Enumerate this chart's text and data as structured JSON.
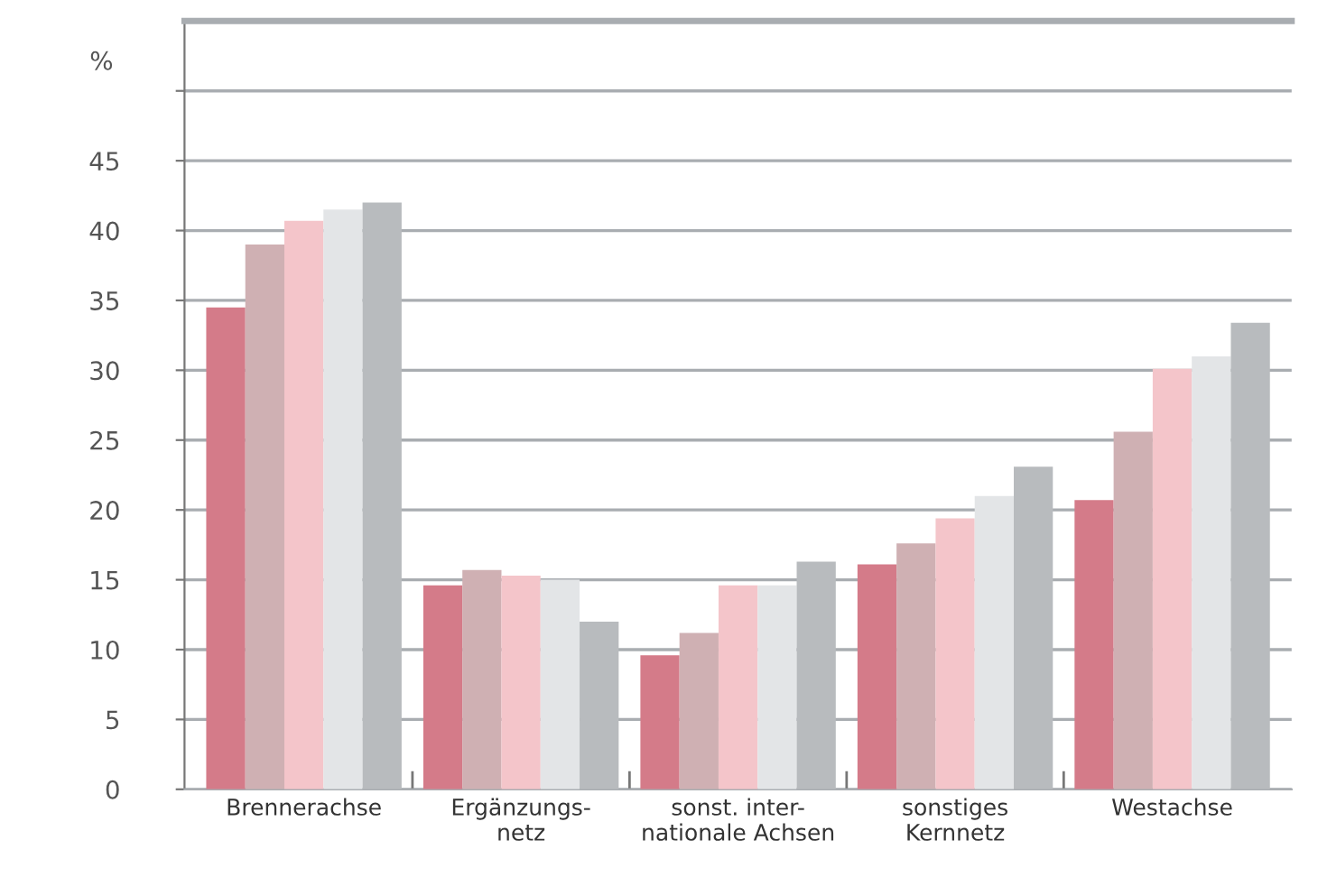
{
  "chart_data": {
    "type": "bar",
    "ylabel": "%",
    "categories": [
      "Brennerachse",
      "Ergänzungs-\nnetz",
      "sonst. inter-\nnationale Achsen",
      "sonstiges\nKernnetz",
      "Westachse"
    ],
    "series": [
      {
        "color": "#d47b89",
        "values": [
          34.5,
          14.6,
          9.6,
          16.1,
          20.7
        ]
      },
      {
        "color": "#cfb0b3",
        "values": [
          39.0,
          15.7,
          11.2,
          17.6,
          25.6
        ]
      },
      {
        "color": "#f4c5ca",
        "values": [
          40.7,
          15.3,
          14.6,
          19.4,
          30.1
        ]
      },
      {
        "color": "#e3e5e7",
        "values": [
          41.5,
          15.0,
          14.6,
          21.0,
          31.0
        ]
      },
      {
        "color": "#b8bbbe",
        "values": [
          42.0,
          12.0,
          16.3,
          23.1,
          33.4
        ]
      }
    ],
    "ylim": [
      0,
      55
    ],
    "yticks": [
      0,
      5,
      10,
      15,
      20,
      25,
      30,
      35,
      40,
      45,
      {
        "value": 50,
        "label": null
      }
    ],
    "grid": "y",
    "legend": false
  }
}
